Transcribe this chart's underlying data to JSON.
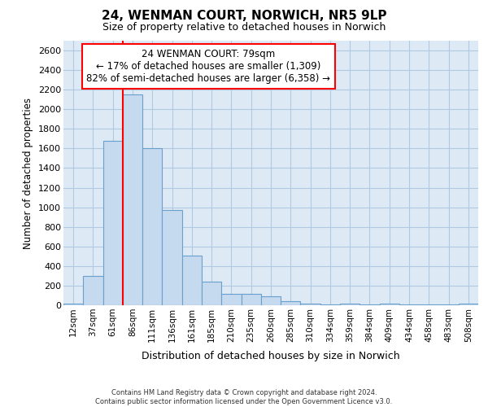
{
  "title": "24, WENMAN COURT, NORWICH, NR5 9LP",
  "subtitle": "Size of property relative to detached houses in Norwich",
  "xlabel": "Distribution of detached houses by size in Norwich",
  "ylabel": "Number of detached properties",
  "bar_color": "#c5d9ef",
  "bar_edge_color": "#6aa0cc",
  "grid_color": "#b0c8e0",
  "background_color": "#ddeaf6",
  "annotation_title": "24 WENMAN COURT: 79sqm",
  "annotation_line1": "← 17% of detached houses are smaller (1,309)",
  "annotation_line2": "82% of semi-detached houses are larger (6,358) →",
  "footer1": "Contains HM Land Registry data © Crown copyright and database right 2024.",
  "footer2": "Contains public sector information licensed under the Open Government Licence v3.0.",
  "categories": [
    "12sqm",
    "37sqm",
    "61sqm",
    "86sqm",
    "111sqm",
    "136sqm",
    "161sqm",
    "185sqm",
    "210sqm",
    "235sqm",
    "260sqm",
    "285sqm",
    "310sqm",
    "334sqm",
    "359sqm",
    "384sqm",
    "409sqm",
    "434sqm",
    "458sqm",
    "483sqm",
    "508sqm"
  ],
  "values": [
    20,
    300,
    1680,
    2150,
    1600,
    970,
    510,
    245,
    120,
    115,
    95,
    45,
    20,
    12,
    15,
    5,
    20,
    5,
    10,
    5,
    20
  ],
  "ylim": [
    0,
    2700
  ],
  "yticks": [
    0,
    200,
    400,
    600,
    800,
    1000,
    1200,
    1400,
    1600,
    1800,
    2000,
    2200,
    2400,
    2600
  ],
  "red_line_index": 2.5
}
